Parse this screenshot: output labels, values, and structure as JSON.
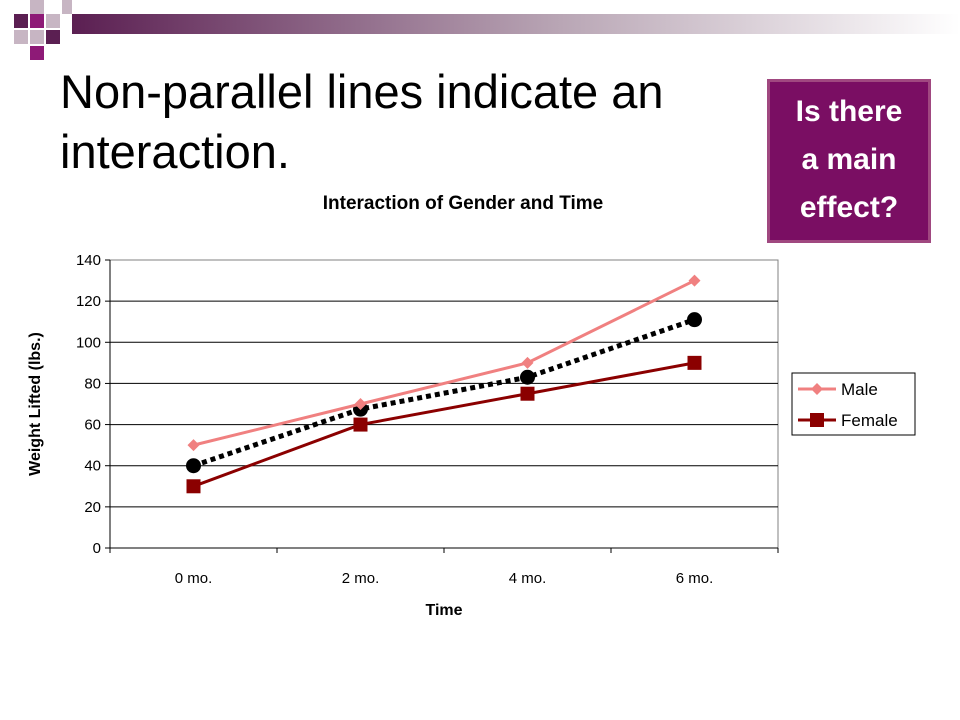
{
  "slide": {
    "title_line1": "Non-parallel lines indicate an",
    "title_line2": "interaction.",
    "callout": [
      "Is there",
      "a main",
      "effect?"
    ],
    "colors": {
      "deco_dark": "#5b1f52",
      "deco_mid": "#8e1a77",
      "callout_bg": "#7a0e63",
      "callout_border": "#a04880"
    }
  },
  "chart_data": {
    "type": "line",
    "title": "Interaction of Gender and Time",
    "xlabel": "Time",
    "ylabel": "Weight Lifted (lbs.)",
    "categories": [
      "0 mo.",
      "2 mo.",
      "4 mo.",
      "6 mo."
    ],
    "ylim": [
      0,
      140
    ],
    "yticks": [
      0,
      20,
      40,
      60,
      80,
      100,
      120,
      140
    ],
    "grid": true,
    "legend": "right",
    "series": [
      {
        "name": "Male",
        "values": [
          50,
          70,
          90,
          130
        ],
        "color": "#f08080",
        "marker": "diamond",
        "style": "solid"
      },
      {
        "name": "Female",
        "values": [
          30,
          60,
          75,
          90
        ],
        "color": "#8b0000",
        "marker": "square",
        "style": "solid"
      },
      {
        "name": "",
        "values": [
          40,
          67.5,
          83,
          111
        ],
        "color": "#000000",
        "marker": "circle",
        "style": "dotted",
        "legend": false
      }
    ]
  }
}
